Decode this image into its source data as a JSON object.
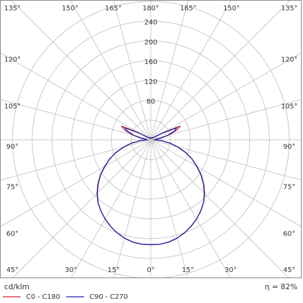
{
  "chart_data": {
    "type": "polar",
    "unit_label": "cd/klm",
    "efficiency_label": "η = 82%",
    "x": [
      -180,
      -175,
      -170,
      -165,
      -160,
      -155,
      -150,
      -145,
      -140,
      -135,
      -130,
      -125,
      -120,
      -115,
      -110,
      -105,
      -100,
      -95,
      -90,
      -85,
      -80,
      -75,
      -70,
      -65,
      -60,
      -55,
      -50,
      -45,
      -40,
      -35,
      -30,
      -25,
      -20,
      -15,
      -10,
      -5,
      0,
      5,
      10,
      15,
      20,
      25,
      30,
      35,
      40,
      45,
      50,
      55,
      60,
      65,
      70,
      75,
      80,
      85,
      90,
      95,
      100,
      105,
      110,
      115,
      120,
      125,
      130,
      135,
      140,
      145,
      150,
      155,
      160,
      165,
      170,
      175,
      180
    ],
    "series": [
      {
        "name": "C0 - C180",
        "color": "#d42020",
        "values": [
          3,
          3,
          3,
          3,
          4,
          4,
          4,
          5,
          5,
          6,
          8,
          12,
          30,
          66,
          55,
          38,
          22,
          10,
          8,
          22,
          40,
          57,
          75,
          92,
          108,
          125,
          140,
          154,
          166,
          176,
          185,
          193,
          200,
          206,
          210,
          212,
          212,
          212,
          210,
          206,
          200,
          193,
          185,
          176,
          166,
          154,
          140,
          125,
          108,
          92,
          75,
          57,
          40,
          22,
          8,
          10,
          22,
          38,
          55,
          66,
          30,
          12,
          8,
          6,
          5,
          5,
          4,
          4,
          4,
          3,
          3,
          3,
          3
        ]
      },
      {
        "name": "C90 - C270",
        "color": "#1a1aa8",
        "values": [
          3,
          3,
          3,
          3,
          4,
          4,
          4,
          5,
          5,
          6,
          8,
          12,
          26,
          58,
          50,
          36,
          21,
          10,
          8,
          22,
          40,
          57,
          75,
          92,
          107,
          124,
          139,
          153,
          166,
          176,
          185,
          193,
          200,
          206,
          210,
          212,
          212,
          212,
          210,
          206,
          200,
          193,
          185,
          176,
          166,
          153,
          139,
          124,
          107,
          92,
          75,
          57,
          40,
          22,
          8,
          10,
          21,
          36,
          50,
          58,
          26,
          12,
          8,
          6,
          5,
          5,
          4,
          4,
          4,
          3,
          3,
          3,
          3
        ]
      }
    ],
    "rlim": [
      0,
      280
    ],
    "rticks": [
      {
        "value": 40,
        "label": null
      },
      80,
      120,
      160,
      200,
      240,
      {
        "value": 280,
        "label": null
      }
    ],
    "angle_ticks": [
      {
        "value": -165,
        "label": "165°"
      },
      {
        "value": -150,
        "label": "150°"
      },
      {
        "value": -135,
        "label": "135°"
      },
      {
        "value": -120,
        "label": "120°"
      },
      {
        "value": -105,
        "label": "105°"
      },
      {
        "value": -90,
        "label": "90°"
      },
      {
        "value": -75,
        "label": "75°"
      },
      {
        "value": -60,
        "label": "60°"
      },
      {
        "value": -45,
        "label": "45°"
      },
      {
        "value": -30,
        "label": "30°"
      },
      {
        "value": -15,
        "label": "15°"
      },
      {
        "value": 0,
        "label": "0°"
      },
      {
        "value": 15,
        "label": "15°"
      },
      {
        "value": 30,
        "label": "30°"
      },
      {
        "value": 45,
        "label": "45°"
      },
      {
        "value": 60,
        "label": "60°"
      },
      {
        "value": 75,
        "label": "75°"
      },
      {
        "value": 90,
        "label": "90°"
      },
      {
        "value": 105,
        "label": "105°"
      },
      {
        "value": 120,
        "label": "120°"
      },
      {
        "value": 135,
        "label": "135°"
      },
      {
        "value": 150,
        "label": "150°"
      },
      {
        "value": 165,
        "label": "165°"
      },
      {
        "value": 180,
        "label": "180°"
      }
    ]
  }
}
